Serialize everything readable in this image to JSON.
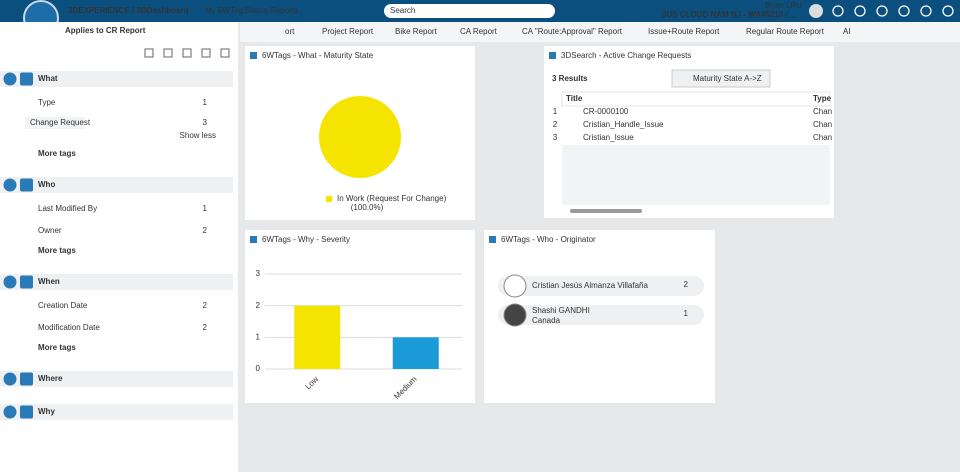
{
  "topbar": {
    "brand": "3DEXPERIENCE | 3DDashboard",
    "dashboard": "My 6WTag Status Reports",
    "search_placeholder": "Search",
    "user": "Brian LRU",
    "tenant": "3DS CLOUD NAM NJ - WA45210 / ..."
  },
  "left_panel": {
    "title": "Applies to CR Report",
    "sections": [
      {
        "label": "What",
        "items": [
          {
            "label": "Type",
            "count": 1
          }
        ],
        "sub_items": [
          {
            "label": "Change Request",
            "count": 3
          }
        ],
        "show_less": "Show less",
        "more": "More tags"
      },
      {
        "label": "Who",
        "items": [
          {
            "label": "Last Modified By",
            "count": 1
          },
          {
            "label": "Owner",
            "count": 2
          }
        ],
        "more": "More tags"
      },
      {
        "label": "When",
        "items": [
          {
            "label": "Creation Date",
            "count": 2
          },
          {
            "label": "Modification Date",
            "count": 2
          }
        ],
        "more": "More tags"
      },
      {
        "label": "Where"
      },
      {
        "label": "Why"
      }
    ]
  },
  "tabs": [
    "ort",
    "Project Report",
    "Bike Report",
    "CA Report",
    "CA \"Route:Approval\" Report",
    "Issue+Route Report",
    "Regular Route Report",
    "AI"
  ],
  "widgets": {
    "maturity": {
      "title": "6WTags - What - Maturity State"
    },
    "search": {
      "title": "3DSearch - Active Change Requests",
      "results": "3 Results",
      "sort": "Maturity State A->Z",
      "columns": [
        "Title",
        "Type"
      ],
      "rows": [
        [
          1,
          "CR-0000100",
          "Chan"
        ],
        [
          2,
          "Cristian_Handle_Issue",
          "Chan"
        ],
        [
          3,
          "Cristian_Issue",
          "Chan"
        ]
      ]
    },
    "severity": {
      "title": "6WTags - Why - Severity"
    },
    "originator": {
      "title": "6WTags - Who - Originator",
      "people": [
        {
          "name": "Cristian Jesús Almanza Villafaña",
          "count": 2
        },
        {
          "name": "Shashi GANDHI",
          "subtitle": "Canada",
          "count": 1
        }
      ]
    }
  },
  "chart_data": [
    {
      "type": "pie",
      "categories": [
        "In Work (Request For Change)"
      ],
      "values": [
        100
      ],
      "value_labels": [
        "(100.0%)"
      ],
      "colors": [
        "#f5e400"
      ]
    },
    {
      "type": "bar",
      "categories": [
        "Low",
        "Medium"
      ],
      "values": [
        2,
        1
      ],
      "colors": [
        "#f5e400",
        "#1a9bd7"
      ],
      "ylim": [
        0,
        3
      ],
      "yticks": [
        0,
        1,
        2,
        3
      ],
      "grid": true
    }
  ]
}
